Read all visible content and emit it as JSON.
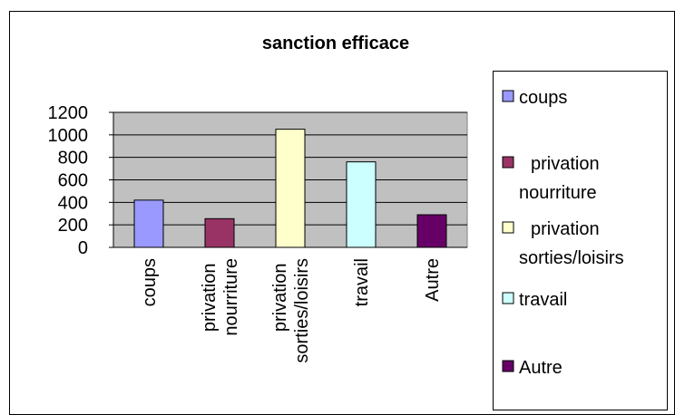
{
  "chart_data": {
    "type": "bar",
    "title": "sanction efficace",
    "categories": [
      "coups",
      "privation nourriture",
      "privation sorties/loisirs",
      "travail",
      "Autre"
    ],
    "values": [
      420,
      255,
      1050,
      760,
      290
    ],
    "colors": [
      "#9999ff",
      "#993366",
      "#ffffcc",
      "#ccffff",
      "#660066"
    ],
    "ylim": [
      0,
      1200
    ],
    "yticks": [
      0,
      200,
      400,
      600,
      800,
      1000,
      1200
    ],
    "grid": true,
    "legend": "right"
  }
}
